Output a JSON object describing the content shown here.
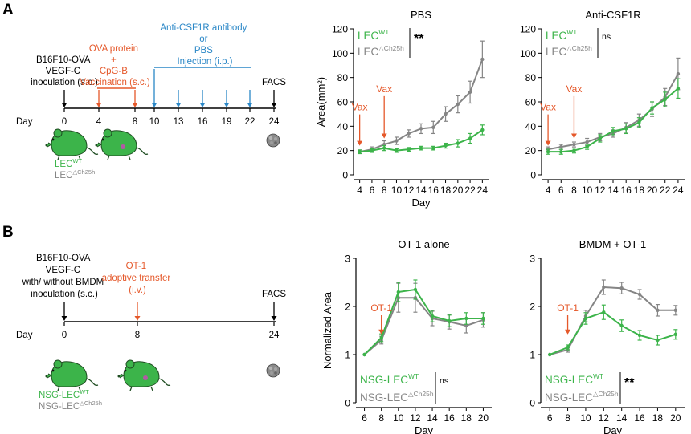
{
  "colors": {
    "wt": "#3cb44a",
    "ko": "#858585",
    "treatment_orange": "#e5582a",
    "treatment_blue": "#2a87c7",
    "axis": "#000000"
  },
  "panel_a": {
    "label": "A",
    "timeline": {
      "inoculation_label": [
        "B16F10-OVA",
        "VEGF-C",
        "inoculation (s.c.)"
      ],
      "vaccination_label": [
        "OVA protein",
        "+",
        "CpG-B",
        "Vaccination (s.c.)"
      ],
      "injection_label": [
        "Anti-CSF1R antibody",
        "or",
        "PBS",
        "Injection (i.p.)"
      ],
      "endpoint_label": "FACS",
      "day_label": "Day",
      "ticks": [
        "0",
        "4",
        "8",
        "10",
        "13",
        "16",
        "19",
        "22",
        "24"
      ],
      "legend_wt": {
        "base": "LEC",
        "sup": "WT"
      },
      "legend_ko": {
        "base": "LEC",
        "sup": "△Ch25h"
      }
    }
  },
  "panel_b": {
    "label": "B",
    "timeline": {
      "inoculation_label": [
        "B16F10-OVA",
        "VEGF-C",
        "with/ without BMDM",
        "inoculation (s.c.)"
      ],
      "transfer_label": [
        "OT-1",
        "adoptive transfer",
        "(i.v.)"
      ],
      "endpoint_label": "FACS",
      "day_label": "Day",
      "ticks": [
        "0",
        "8",
        "24"
      ],
      "legend_wt": {
        "base": "NSG-LEC",
        "sup": "WT"
      },
      "legend_ko": {
        "base": "NSG-LEC",
        "sup": "△Ch25h"
      }
    }
  },
  "chart_data": [
    {
      "id": "pbs",
      "type": "line",
      "title": "PBS",
      "xlabel": "Day",
      "ylabel": "Area(mm²)",
      "x": [
        4,
        6,
        8,
        10,
        12,
        14,
        16,
        18,
        20,
        22,
        24
      ],
      "xlim": [
        3,
        25
      ],
      "ylim": [
        0,
        120
      ],
      "yticks": [
        0,
        20,
        40,
        60,
        80,
        100,
        120
      ],
      "series": [
        {
          "name": "LEC WT",
          "key": "wt",
          "values": [
            19,
            20,
            22,
            20,
            21,
            22,
            22,
            24,
            26,
            30,
            37
          ],
          "errors": [
            1.5,
            1.5,
            2,
            1.5,
            1.5,
            1.5,
            1.5,
            2,
            3,
            4,
            4
          ]
        },
        {
          "name": "LEC △Ch25h",
          "key": "ko",
          "values": [
            19,
            21,
            25,
            28,
            34,
            38,
            39,
            50,
            58,
            68,
            95
          ],
          "errors": [
            1.5,
            2,
            3,
            3,
            3,
            4,
            5,
            6,
            7,
            9,
            15
          ]
        }
      ],
      "annotations": [
        {
          "text": "Vax",
          "x": 4
        },
        {
          "text": "Vax",
          "x": 8
        }
      ],
      "significance": "**",
      "legend_wt": {
        "base": "LEC",
        "sup": "WT"
      },
      "legend_ko": {
        "base": "LEC",
        "sup": "△Ch25h"
      },
      "legend_placement": "top-left"
    },
    {
      "id": "anticsf1r",
      "type": "line",
      "title": "Anti-CSF1R",
      "xlabel": "",
      "ylabel": "",
      "x": [
        4,
        6,
        8,
        10,
        12,
        14,
        16,
        18,
        20,
        22,
        24
      ],
      "xlim": [
        3,
        25
      ],
      "ylim": [
        0,
        120
      ],
      "yticks": [
        0,
        20,
        40,
        60,
        80,
        100,
        120
      ],
      "series": [
        {
          "name": "LEC WT",
          "key": "wt",
          "values": [
            19,
            19,
            20,
            23,
            30,
            36,
            38,
            43,
            55,
            62,
            71
          ],
          "errors": [
            2,
            2,
            2,
            2,
            3,
            3,
            4,
            4,
            5,
            6,
            8
          ]
        },
        {
          "name": "LEC △Ch25h",
          "key": "ko",
          "values": [
            21,
            23,
            25,
            27,
            31,
            34,
            39,
            45,
            54,
            64,
            83
          ],
          "errors": [
            2,
            2,
            2,
            3,
            3,
            3,
            4,
            5,
            6,
            7,
            13
          ]
        }
      ],
      "annotations": [
        {
          "text": "Vax",
          "x": 4
        },
        {
          "text": "Vax",
          "x": 8
        }
      ],
      "significance": "ns",
      "legend_wt": {
        "base": "LEC",
        "sup": "WT"
      },
      "legend_ko": {
        "base": "LEC",
        "sup": "△Ch25h"
      },
      "legend_placement": "top-left"
    },
    {
      "id": "ot1",
      "type": "line",
      "title": "OT-1 alone",
      "xlabel": "Day",
      "ylabel": "Normalized Area",
      "x": [
        6,
        8,
        10,
        12,
        14,
        16,
        18,
        20
      ],
      "xlim": [
        5,
        21
      ],
      "ylim": [
        0,
        3
      ],
      "yticks": [
        0,
        1,
        2,
        3
      ],
      "series": [
        {
          "name": "NSG-LEC WT",
          "key": "wt",
          "values": [
            1.0,
            1.35,
            2.3,
            2.35,
            1.8,
            1.7,
            1.75,
            1.75
          ],
          "errors": [
            0,
            0.08,
            0.2,
            0.2,
            0.12,
            0.12,
            0.12,
            0.12
          ]
        },
        {
          "name": "NSG-LEC △Ch25h",
          "key": "ko",
          "values": [
            1.0,
            1.3,
            2.18,
            2.18,
            1.75,
            1.68,
            1.6,
            1.72
          ],
          "errors": [
            0,
            0.08,
            0.3,
            0.3,
            0.15,
            0.15,
            0.15,
            0.15
          ]
        }
      ],
      "annotations": [
        {
          "text": "OT-1",
          "x": 8
        }
      ],
      "significance": "ns",
      "legend_wt": {
        "base": "NSG-LEC",
        "sup": "WT"
      },
      "legend_ko": {
        "base": "NSG-LEC",
        "sup": "△Ch25h"
      },
      "legend_placement": "bottom-right"
    },
    {
      "id": "bmdm",
      "type": "line",
      "title": "BMDM + OT-1",
      "xlabel": "Day",
      "ylabel": "",
      "x": [
        6,
        8,
        10,
        12,
        14,
        16,
        18,
        20
      ],
      "xlim": [
        5,
        21
      ],
      "ylim": [
        0,
        3
      ],
      "yticks": [
        0,
        1,
        2,
        3
      ],
      "series": [
        {
          "name": "NSG-LEC WT",
          "key": "wt",
          "values": [
            1.0,
            1.15,
            1.75,
            1.88,
            1.6,
            1.4,
            1.3,
            1.42
          ],
          "errors": [
            0,
            0.05,
            0.12,
            0.15,
            0.12,
            0.1,
            0.1,
            0.1
          ]
        },
        {
          "name": "NSG-LEC △Ch25h",
          "key": "ko",
          "values": [
            1.0,
            1.1,
            1.8,
            2.4,
            2.38,
            2.25,
            1.92,
            1.92
          ],
          "errors": [
            0,
            0.05,
            0.12,
            0.15,
            0.12,
            0.1,
            0.12,
            0.1
          ]
        }
      ],
      "annotations": [
        {
          "text": "OT-1",
          "x": 8
        }
      ],
      "significance": "**",
      "legend_wt": {
        "base": "NSG-LEC",
        "sup": "WT"
      },
      "legend_ko": {
        "base": "NSG-LEC",
        "sup": "△Ch25h"
      },
      "legend_placement": "bottom-right"
    }
  ]
}
